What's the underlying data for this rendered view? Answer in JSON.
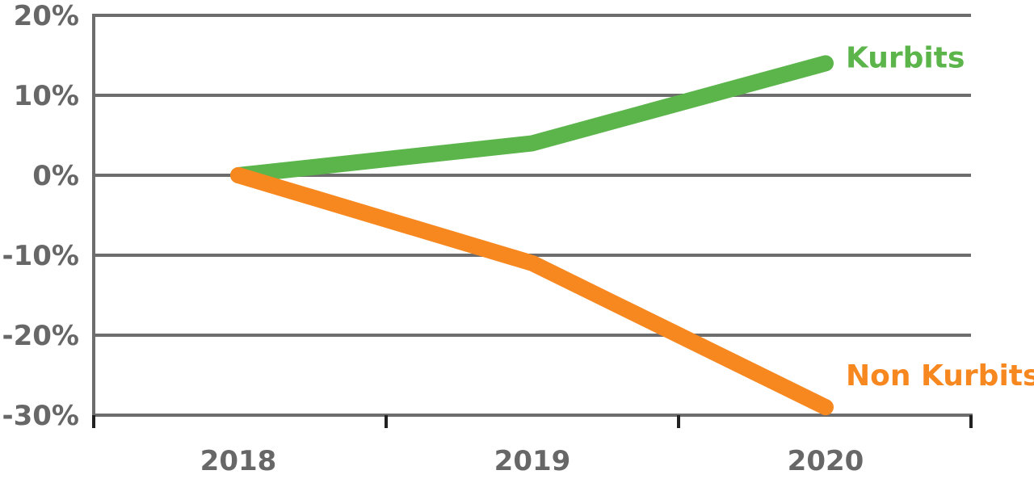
{
  "chart_data": {
    "type": "line",
    "title": "",
    "xlabel": "",
    "ylabel": "",
    "categories": [
      "2018",
      "2019",
      "2020"
    ],
    "ylim": [
      -30,
      20
    ],
    "yticks": [
      20,
      10,
      0,
      -10,
      -20,
      -30
    ],
    "ytick_labels": [
      "20%",
      "10%",
      "0%",
      "-10%",
      "-20%",
      "-30%"
    ],
    "grid": true,
    "legend": "inline labels at line ends",
    "series": [
      {
        "name": "Kurbits",
        "values": [
          0,
          4,
          14
        ],
        "color": "#5bb54a"
      },
      {
        "name": "Non Kurbits",
        "values": [
          0,
          -11,
          -29
        ],
        "color": "#f7871f"
      }
    ],
    "colors": {
      "grid": "#6d6d6d",
      "tick_text": "#676767"
    }
  }
}
